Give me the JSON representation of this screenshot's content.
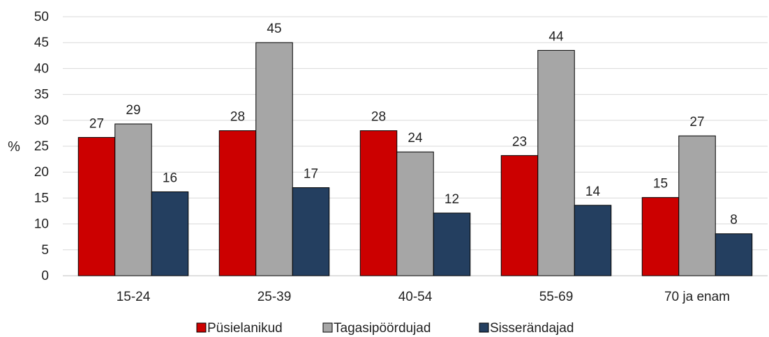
{
  "chart_data": {
    "type": "bar",
    "ylabel": "%",
    "xlabel": "",
    "title": "",
    "ylim": [
      0,
      50
    ],
    "ytick_step": 5,
    "yticks": [
      "0",
      "5",
      "10",
      "15",
      "20",
      "25",
      "30",
      "35",
      "40",
      "45",
      "50"
    ],
    "grid": true,
    "legend_position": "bottom",
    "categories": [
      "15-24",
      "25-39",
      "40-54",
      "55-69",
      "70 ja enam"
    ],
    "series": [
      {
        "name": "Püsielanikud",
        "color": "#cc0000",
        "values": [
          26.7,
          28.0,
          28.0,
          23.2,
          15.1
        ],
        "labels": [
          "27",
          "28",
          "28",
          "23",
          "15"
        ]
      },
      {
        "name": "Tagasipöördujad",
        "color": "#a6a6a6",
        "values": [
          29.3,
          45.0,
          23.9,
          43.5,
          27.0
        ],
        "labels": [
          "29",
          "45",
          "24",
          "44",
          "27"
        ]
      },
      {
        "name": "Sisserändajad",
        "color": "#243f60",
        "values": [
          16.2,
          17.0,
          12.1,
          13.6,
          8.1
        ],
        "labels": [
          "16",
          "17",
          "12",
          "14",
          "8"
        ]
      }
    ]
  }
}
